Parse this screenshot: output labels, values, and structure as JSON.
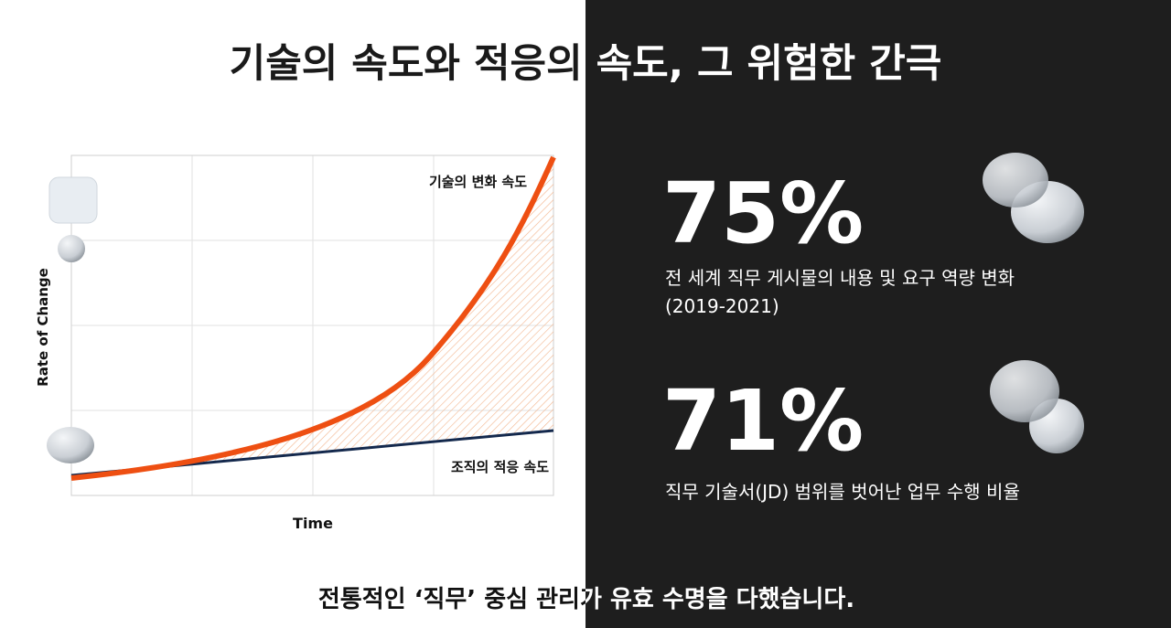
{
  "header": {
    "title": "기술의 속도와 적응의 속도, 그 위험한 간극"
  },
  "diagram": {
    "y_label": "Rate of Change",
    "x_label": "Time",
    "curves": [
      {
        "label": "기술의 변화 속도"
      },
      {
        "label": "조직의 적응 속도"
      }
    ]
  },
  "stats": [
    {
      "value": "75%",
      "description": [
        "전 세계 직무 게시물의 내용 및 요구 역량 변화",
        "(2019-2021)"
      ]
    },
    {
      "value": "71%",
      "description": [
        "직무 기술서(JD) 범위를 벗어난 업무 수행 비율"
      ]
    }
  ],
  "footer": {
    "text": "전통적인 ‘직무’ 중심 관리가 유효 수명을 다했습니다."
  }
}
